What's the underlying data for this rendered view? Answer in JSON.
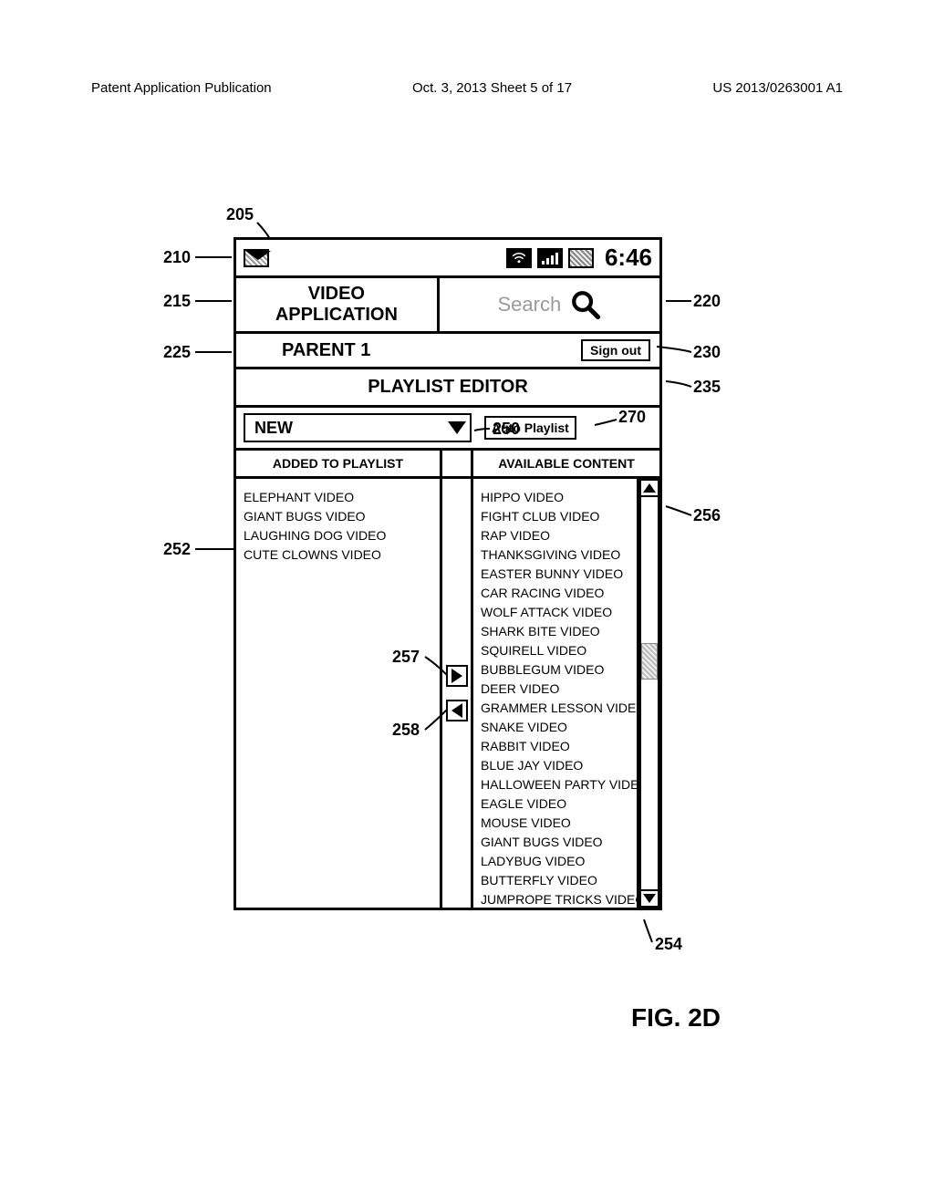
{
  "pageHeader": {
    "left": "Patent Application Publication",
    "center": "Oct. 3, 2013  Sheet 5 of 17",
    "right": "US 2013/0263001 A1"
  },
  "statusBar": {
    "time": "6:46"
  },
  "app": {
    "titleLine1": "VIDEO",
    "titleLine2": "APPLICATION",
    "searchPlaceholder": "Search"
  },
  "userRow": {
    "user": "PARENT 1",
    "signOut": "Sign out"
  },
  "editor": {
    "title": "PLAYLIST EDITOR"
  },
  "selectRow": {
    "newLabel": "NEW",
    "autoLabel": "Auto Playlist"
  },
  "columns": {
    "left": "ADDED TO PLAYLIST",
    "right": "AVAILABLE CONTENT"
  },
  "added": [
    "ELEPHANT VIDEO",
    "GIANT BUGS VIDEO",
    "LAUGHING DOG VIDEO",
    "CUTE CLOWNS VIDEO"
  ],
  "available": [
    "HIPPO VIDEO",
    "FIGHT CLUB VIDEO",
    "RAP VIDEO",
    "THANKSGIVING VIDEO",
    "EASTER BUNNY VIDEO",
    "CAR RACING VIDEO",
    "WOLF ATTACK VIDEO",
    "SHARK BITE VIDEO",
    "SQUIRELL VIDEO",
    "BUBBLEGUM VIDEO",
    "DEER VIDEO",
    "GRAMMER LESSON VIDEO",
    "SNAKE VIDEO",
    "RABBIT VIDEO",
    "BLUE JAY VIDEO",
    "HALLOWEEN PARTY VIDE",
    "EAGLE VIDEO",
    "MOUSE VIDEO",
    "GIANT BUGS VIDEO",
    "LADYBUG VIDEO",
    "BUTTERFLY VIDEO",
    "JUMPROPE TRICKS VIDEO"
  ],
  "callouts": {
    "c205": "205",
    "c210": "210",
    "c215": "215",
    "c220": "220",
    "c225": "225",
    "c230": "230",
    "c235": "235",
    "c250": "250",
    "c252": "252",
    "c254": "254",
    "c256": "256",
    "c257": "257",
    "c258": "258",
    "c270": "270"
  },
  "figLabel": "FIG. 2D"
}
